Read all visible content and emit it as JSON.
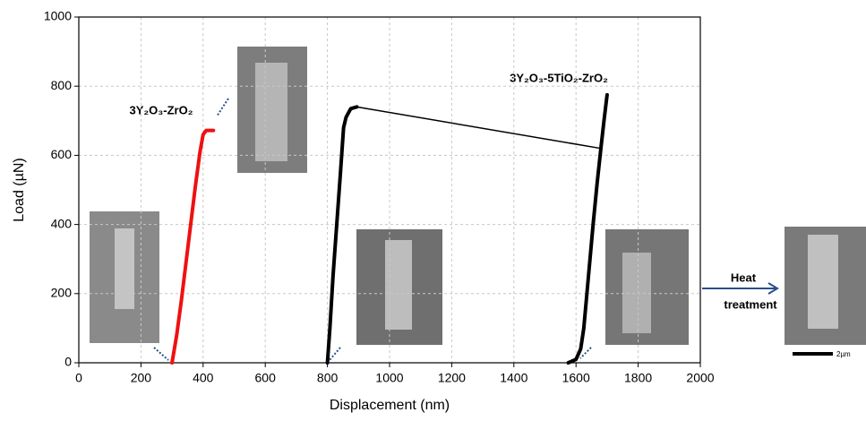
{
  "chart_data": {
    "type": "line",
    "x_label": "Displacement (nm)",
    "y_label": "Load (µN)",
    "xlim": [
      0,
      2000
    ],
    "xticks": [
      0,
      200,
      400,
      600,
      800,
      1000,
      1200,
      1400,
      1600,
      1800,
      2000
    ],
    "ylim": [
      0,
      1000
    ],
    "yticks": [
      0,
      200,
      400,
      600,
      800,
      1000
    ],
    "grid": true,
    "series": [
      {
        "name": "3Y₂O₃-ZrO₂",
        "color": "#ee1111",
        "x": [
          300,
          315,
          330,
          345,
          360,
          375,
          390,
          400,
          410,
          425,
          433
        ],
        "values": [
          0,
          80,
          180,
          290,
          400,
          510,
          610,
          660,
          672,
          672,
          672
        ]
      },
      {
        "name": "3Y₂O₃-5TiO₂-ZrO₂",
        "color": "#000000",
        "x": [
          800,
          808,
          818,
          830,
          842,
          852,
          860,
          875,
          895,
          1680,
          null,
          1575,
          1600,
          1615,
          1625,
          1640,
          1655,
          1668,
          1680,
          1690,
          1700
        ],
        "values": [
          0,
          100,
          250,
          400,
          550,
          680,
          710,
          735,
          740,
          620,
          null,
          0,
          10,
          40,
          100,
          250,
          400,
          520,
          620,
          700,
          775
        ]
      }
    ],
    "annotations": [
      "Heat",
      "treatment",
      "2µm"
    ]
  }
}
